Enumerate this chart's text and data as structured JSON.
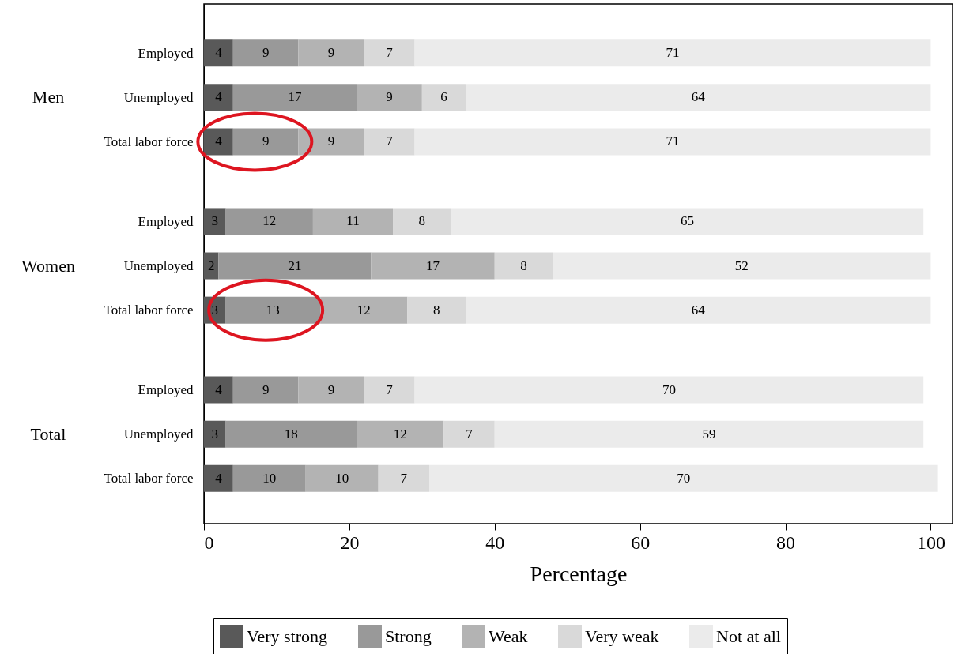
{
  "chart_data": {
    "type": "bar",
    "orientation": "horizontal",
    "stacked": true,
    "data_labels": true,
    "xlabel": "Percentage",
    "xlim": [
      0,
      103
    ],
    "xticks": [
      0,
      20,
      40,
      60,
      80,
      100
    ],
    "grid": false,
    "legend": "bottom",
    "categories": [
      "Employed",
      "Unemployed",
      "Total labor force",
      "Employed",
      "Unemployed",
      "Total labor force",
      "Employed",
      "Unemployed",
      "Total labor force"
    ],
    "annotations": [
      "Men",
      "Women",
      "Total"
    ],
    "series": [
      {
        "name": "Very strong",
        "color": "#595959",
        "values": [
          4,
          4,
          4,
          3,
          2,
          3,
          4,
          3,
          4
        ]
      },
      {
        "name": "Strong",
        "color": "#999999",
        "values": [
          9,
          17,
          9,
          12,
          21,
          13,
          9,
          18,
          10
        ]
      },
      {
        "name": "Weak",
        "color": "#b3b3b3",
        "values": [
          9,
          9,
          9,
          11,
          17,
          12,
          9,
          12,
          10
        ]
      },
      {
        "name": "Very weak",
        "color": "#d9d9d9",
        "values": [
          7,
          6,
          7,
          8,
          8,
          8,
          7,
          7,
          7
        ]
      },
      {
        "name": "Not at all",
        "color": "#ebebeb",
        "values": [
          71,
          64,
          71,
          65,
          52,
          64,
          70,
          59,
          70
        ]
      }
    ]
  }
}
